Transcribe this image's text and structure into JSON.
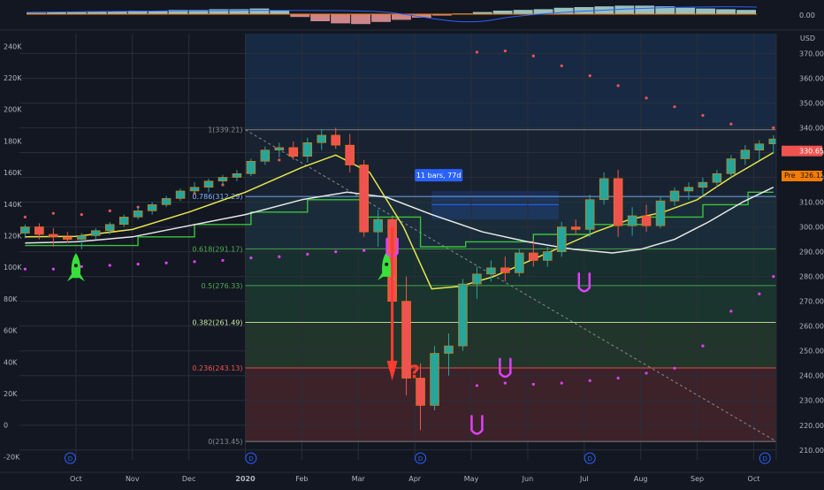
{
  "chart_data": {
    "type": "candlestick",
    "subtype": "tradingview-price-chart",
    "x_months": [
      "Oct",
      "Nov",
      "Dec",
      "2020",
      "Feb",
      "Mar",
      "Apr",
      "May",
      "Jun",
      "Jul",
      "Aug",
      "Sep",
      "Oct"
    ],
    "x_month_index": [
      1,
      2,
      3,
      4,
      5,
      6,
      7,
      8,
      9,
      10,
      11,
      12,
      13
    ],
    "x_range": [
      0.0,
      13.4
    ],
    "y_right": {
      "label": "USD",
      "range": [
        206,
        378
      ],
      "ticks": [
        210,
        220,
        230,
        240,
        250,
        260,
        270,
        280,
        290,
        300,
        310,
        320,
        330,
        340,
        350,
        360,
        370
      ]
    },
    "y_left": {
      "range": [
        -22000,
        248000
      ],
      "ticks": [
        -20000,
        0,
        20000,
        40000,
        60000,
        80000,
        100000,
        120000,
        140000,
        160000,
        180000,
        200000,
        220000,
        240000
      ],
      "tick_labels": [
        "-20K",
        "0",
        "20K",
        "40K",
        "60K",
        "80K",
        "100K",
        "120K",
        "140K",
        "160K",
        "180K",
        "200K",
        "220K",
        "240K"
      ]
    },
    "top_panel": {
      "zero_label": "0.00",
      "bars": [
        0.2,
        0.3,
        0.3,
        0.4,
        0.4,
        0.5,
        0.5,
        0.6,
        0.6,
        0.7,
        0.7,
        0.8,
        0.5,
        -0.4,
        -1.0,
        -1.3,
        -1.4,
        -1.1,
        -0.8,
        -0.5,
        -0.2,
        0.1,
        0.3,
        0.5,
        0.6,
        0.7,
        0.9,
        1.0,
        1.1,
        1.2,
        1.2,
        1.1,
        0.9,
        0.8,
        0.7,
        0.6
      ]
    },
    "candles": [
      {
        "x": 0.1,
        "o": 297.5,
        "h": 301.0,
        "l": 295.5,
        "c": 300.0
      },
      {
        "x": 0.35,
        "o": 300.0,
        "h": 301.5,
        "l": 295.0,
        "c": 297.0
      },
      {
        "x": 0.6,
        "o": 297.0,
        "h": 299.5,
        "l": 292.0,
        "c": 296.0
      },
      {
        "x": 0.85,
        "o": 296.0,
        "h": 298.0,
        "l": 293.5,
        "c": 295.0
      },
      {
        "x": 1.1,
        "o": 295.0,
        "h": 297.5,
        "l": 291.0,
        "c": 296.5
      },
      {
        "x": 1.35,
        "o": 296.5,
        "h": 299.5,
        "l": 295.0,
        "c": 298.5
      },
      {
        "x": 1.6,
        "o": 298.5,
        "h": 302.0,
        "l": 297.0,
        "c": 301.0
      },
      {
        "x": 1.85,
        "o": 301.0,
        "h": 305.0,
        "l": 300.0,
        "c": 304.0
      },
      {
        "x": 2.1,
        "o": 304.0,
        "h": 308.0,
        "l": 303.0,
        "c": 306.5
      },
      {
        "x": 2.35,
        "o": 306.5,
        "h": 310.0,
        "l": 305.0,
        "c": 309.0
      },
      {
        "x": 2.6,
        "o": 309.0,
        "h": 312.5,
        "l": 308.0,
        "c": 311.5
      },
      {
        "x": 2.85,
        "o": 311.5,
        "h": 315.5,
        "l": 310.5,
        "c": 314.5
      },
      {
        "x": 3.1,
        "o": 314.5,
        "h": 318.0,
        "l": 313.0,
        "c": 316.0
      },
      {
        "x": 3.35,
        "o": 316.0,
        "h": 319.5,
        "l": 314.0,
        "c": 318.5
      },
      {
        "x": 3.6,
        "o": 318.5,
        "h": 321.0,
        "l": 317.0,
        "c": 320.0
      },
      {
        "x": 3.85,
        "o": 320.0,
        "h": 323.0,
        "l": 318.5,
        "c": 321.5
      },
      {
        "x": 4.1,
        "o": 321.5,
        "h": 327.5,
        "l": 320.5,
        "c": 326.5
      },
      {
        "x": 4.35,
        "o": 326.5,
        "h": 332.5,
        "l": 325.0,
        "c": 331.0
      },
      {
        "x": 4.6,
        "o": 331.0,
        "h": 334.0,
        "l": 328.0,
        "c": 332.0
      },
      {
        "x": 4.85,
        "o": 332.0,
        "h": 334.5,
        "l": 327.0,
        "c": 328.5
      },
      {
        "x": 5.1,
        "o": 328.5,
        "h": 336.0,
        "l": 326.0,
        "c": 334.0
      },
      {
        "x": 5.35,
        "o": 334.0,
        "h": 339.5,
        "l": 331.0,
        "c": 337.0
      },
      {
        "x": 5.6,
        "o": 337.0,
        "h": 340.0,
        "l": 331.5,
        "c": 333.0
      },
      {
        "x": 5.85,
        "o": 333.0,
        "h": 337.5,
        "l": 322.0,
        "c": 325.0
      },
      {
        "x": 6.1,
        "o": 325.0,
        "h": 327.0,
        "l": 296.0,
        "c": 298.0
      },
      {
        "x": 6.35,
        "o": 298.0,
        "h": 307.0,
        "l": 292.0,
        "c": 303.0
      },
      {
        "x": 6.6,
        "o": 303.0,
        "h": 304.0,
        "l": 258.0,
        "c": 270.0
      },
      {
        "x": 6.85,
        "o": 270.0,
        "h": 280.0,
        "l": 232.0,
        "c": 239.0
      },
      {
        "x": 7.1,
        "o": 239.0,
        "h": 245.0,
        "l": 218.0,
        "c": 228.0
      },
      {
        "x": 7.35,
        "o": 228.0,
        "h": 252.0,
        "l": 226.0,
        "c": 249.0
      },
      {
        "x": 7.6,
        "o": 249.0,
        "h": 257.0,
        "l": 240.0,
        "c": 252.0
      },
      {
        "x": 7.85,
        "o": 252.0,
        "h": 279.0,
        "l": 250.0,
        "c": 277.0
      },
      {
        "x": 8.1,
        "o": 277.0,
        "h": 284.0,
        "l": 271.0,
        "c": 281.0
      },
      {
        "x": 8.35,
        "o": 281.0,
        "h": 286.5,
        "l": 278.0,
        "c": 283.5
      },
      {
        "x": 8.6,
        "o": 283.5,
        "h": 288.0,
        "l": 278.0,
        "c": 281.5
      },
      {
        "x": 8.85,
        "o": 281.5,
        "h": 291.0,
        "l": 280.0,
        "c": 289.5
      },
      {
        "x": 9.1,
        "o": 289.5,
        "h": 295.0,
        "l": 284.0,
        "c": 286.5
      },
      {
        "x": 9.35,
        "o": 286.5,
        "h": 292.0,
        "l": 284.0,
        "c": 290.0
      },
      {
        "x": 9.6,
        "o": 290.0,
        "h": 302.0,
        "l": 288.0,
        "c": 300.0
      },
      {
        "x": 9.85,
        "o": 300.0,
        "h": 303.0,
        "l": 297.0,
        "c": 299.0
      },
      {
        "x": 10.1,
        "o": 299.0,
        "h": 313.0,
        "l": 296.0,
        "c": 311.0
      },
      {
        "x": 10.35,
        "o": 311.0,
        "h": 322.0,
        "l": 309.0,
        "c": 319.5
      },
      {
        "x": 10.6,
        "o": 319.5,
        "h": 323.0,
        "l": 296.0,
        "c": 300.5
      },
      {
        "x": 10.85,
        "o": 300.5,
        "h": 308.0,
        "l": 296.5,
        "c": 304.5
      },
      {
        "x": 11.1,
        "o": 304.5,
        "h": 309.0,
        "l": 298.0,
        "c": 300.5
      },
      {
        "x": 11.35,
        "o": 300.5,
        "h": 312.5,
        "l": 299.5,
        "c": 310.5
      },
      {
        "x": 11.6,
        "o": 310.5,
        "h": 316.0,
        "l": 308.5,
        "c": 314.5
      },
      {
        "x": 11.85,
        "o": 314.5,
        "h": 318.0,
        "l": 311.0,
        "c": 316.0
      },
      {
        "x": 12.1,
        "o": 316.0,
        "h": 320.0,
        "l": 313.0,
        "c": 318.0
      },
      {
        "x": 12.35,
        "o": 318.0,
        "h": 323.0,
        "l": 316.0,
        "c": 321.5
      },
      {
        "x": 12.6,
        "o": 321.5,
        "h": 329.0,
        "l": 320.0,
        "c": 327.5
      },
      {
        "x": 12.85,
        "o": 327.5,
        "h": 333.0,
        "l": 325.0,
        "c": 331.0
      },
      {
        "x": 13.1,
        "o": 331.0,
        "h": 335.0,
        "l": 327.0,
        "c": 333.5
      },
      {
        "x": 13.35,
        "o": 333.5,
        "h": 337.0,
        "l": 329.5,
        "c": 335.5
      }
    ],
    "moving_averages": [
      {
        "color": "#e6e64d",
        "points": [
          [
            0.1,
            296.0
          ],
          [
            1.0,
            296.2
          ],
          [
            2.0,
            299.0
          ],
          [
            3.0,
            306.0
          ],
          [
            4.0,
            314.0
          ],
          [
            5.0,
            324.0
          ],
          [
            5.6,
            329.0
          ],
          [
            6.2,
            322.0
          ],
          [
            6.8,
            300.0
          ],
          [
            7.3,
            275.0
          ],
          [
            7.8,
            276.0
          ],
          [
            8.4,
            280.0
          ],
          [
            9.0,
            286.0
          ],
          [
            9.6,
            292.0
          ],
          [
            10.2,
            298.0
          ],
          [
            10.8,
            303.0
          ],
          [
            11.4,
            306.0
          ],
          [
            12.0,
            311.0
          ],
          [
            12.6,
            320.0
          ],
          [
            13.35,
            330.0
          ]
        ]
      },
      {
        "color": "#e8e8e8",
        "points": [
          [
            0.1,
            293.5
          ],
          [
            1.0,
            294.0
          ],
          [
            2.0,
            296.0
          ],
          [
            3.0,
            300.5
          ],
          [
            4.0,
            305.0
          ],
          [
            5.0,
            311.0
          ],
          [
            5.8,
            314.0
          ],
          [
            6.5,
            312.0
          ],
          [
            7.3,
            305.0
          ],
          [
            8.2,
            298.0
          ],
          [
            9.0,
            294.0
          ],
          [
            9.8,
            291.0
          ],
          [
            10.5,
            289.5
          ],
          [
            11.0,
            291.0
          ],
          [
            11.6,
            295.0
          ],
          [
            12.2,
            302.0
          ],
          [
            12.8,
            310.0
          ],
          [
            13.35,
            316.0
          ]
        ]
      }
    ],
    "step_lines": [
      {
        "color": "#39c43a",
        "points": [
          [
            0.1,
            292.5
          ],
          [
            2.1,
            292.5
          ],
          [
            2.1,
            296.0
          ],
          [
            3.1,
            296.0
          ],
          [
            3.1,
            301.0
          ],
          [
            4.1,
            301.0
          ],
          [
            4.1,
            306.0
          ],
          [
            5.1,
            306.0
          ],
          [
            5.1,
            311.0
          ],
          [
            6.1,
            311.0
          ],
          [
            6.1,
            304.0
          ],
          [
            7.1,
            304.0
          ],
          [
            7.1,
            292.0
          ],
          [
            7.9,
            292.0
          ],
          [
            7.9,
            294.0
          ],
          [
            9.1,
            294.0
          ],
          [
            9.1,
            297.0
          ],
          [
            10.1,
            297.0
          ],
          [
            10.1,
            301.0
          ],
          [
            11.1,
            301.0
          ],
          [
            11.1,
            304.0
          ],
          [
            12.1,
            304.0
          ],
          [
            12.1,
            309.0
          ],
          [
            12.9,
            309.0
          ],
          [
            12.9,
            314.0
          ],
          [
            13.35,
            314.0
          ]
        ]
      }
    ],
    "sar_dots": {
      "upper": [
        [
          0.1,
          304.0
        ],
        [
          0.6,
          305.5
        ],
        [
          1.1,
          305.0
        ],
        [
          1.6,
          306.5
        ],
        [
          2.1,
          308.0
        ],
        [
          2.6,
          310.0
        ],
        [
          3.1,
          313.5
        ],
        [
          3.6,
          317.0
        ],
        [
          4.1,
          322.0
        ],
        [
          4.6,
          327.0
        ],
        [
          5.1,
          332.0
        ],
        [
          5.6,
          336.5
        ],
        [
          8.1,
          370.5
        ],
        [
          8.6,
          371.0
        ],
        [
          9.1,
          369.0
        ],
        [
          9.6,
          365.0
        ],
        [
          10.1,
          361.0
        ],
        [
          10.6,
          357.0
        ],
        [
          11.1,
          352.0
        ],
        [
          11.6,
          348.5
        ],
        [
          12.1,
          345.0
        ],
        [
          12.6,
          341.5
        ],
        [
          13.35,
          340.0
        ]
      ],
      "lower": [
        [
          0.1,
          283.0
        ],
        [
          0.6,
          283.0
        ],
        [
          1.1,
          284.0
        ],
        [
          1.6,
          284.5
        ],
        [
          2.1,
          285.0
        ],
        [
          2.6,
          285.5
        ],
        [
          3.1,
          286.0
        ],
        [
          3.6,
          286.5
        ],
        [
          4.1,
          287.5
        ],
        [
          4.6,
          288.0
        ],
        [
          5.1,
          289.0
        ],
        [
          5.6,
          290.0
        ],
        [
          6.1,
          290.5
        ],
        [
          8.1,
          236.0
        ],
        [
          8.6,
          237.0
        ],
        [
          9.1,
          236.5
        ],
        [
          9.6,
          237.0
        ],
        [
          10.1,
          238.0
        ],
        [
          10.6,
          239.0
        ],
        [
          11.1,
          241.0
        ],
        [
          11.6,
          243.0
        ],
        [
          12.1,
          252.0
        ],
        [
          12.6,
          266.0
        ],
        [
          13.1,
          273.0
        ],
        [
          13.35,
          280.0
        ]
      ]
    },
    "fib_levels": [
      {
        "label": "1(339.21)",
        "value": 339.21,
        "color": "#8a8a8a"
      },
      {
        "label": "0.786(312.29)",
        "value": 312.29,
        "color": "#7fb3ff"
      },
      {
        "label": "0.618(291.17)",
        "value": 291.17,
        "color": "#4caf50"
      },
      {
        "label": "0.5(276.33)",
        "value": 276.33,
        "color": "#4caf50"
      },
      {
        "label": "0.382(261.49)",
        "value": 261.49,
        "color": "#c8e6a0"
      },
      {
        "label": "0.236(243.13)",
        "value": 243.13,
        "color": "#ef5350"
      },
      {
        "label": "0(213.45)",
        "value": 213.45,
        "color": "#8a8a8a"
      }
    ],
    "measure_label": "11 bars, 77d",
    "last_price": "330.65",
    "pre_price": "326.12",
    "pre_label": "Pre",
    "annotations": [
      {
        "kind": "rocket",
        "x": 1.0,
        "y": 283.0,
        "color": "#39e03a"
      },
      {
        "kind": "rocket",
        "x": 6.5,
        "y": 283.5,
        "color": "#39e03a"
      },
      {
        "kind": "question",
        "x": 7.0,
        "y": 239.0,
        "text": "?",
        "color": "#ff3b30"
      },
      {
        "kind": "cup",
        "x": 6.6,
        "y": 289.5,
        "color": "#e040fb"
      },
      {
        "kind": "cup",
        "x": 8.1,
        "y": 218.0,
        "color": "#e040fb"
      },
      {
        "kind": "cup",
        "x": 8.6,
        "y": 241.0,
        "color": "#e040fb"
      },
      {
        "kind": "cup",
        "x": 10.0,
        "y": 275.5,
        "color": "#e040fb"
      }
    ],
    "event_marker": "D",
    "event_x": [
      0.9,
      4.1,
      7.1,
      10.1,
      13.2
    ],
    "colors": {
      "up": "#26a69a",
      "down": "#ef5350",
      "bg": "#131722",
      "axis_text": "#b2b5be"
    }
  }
}
